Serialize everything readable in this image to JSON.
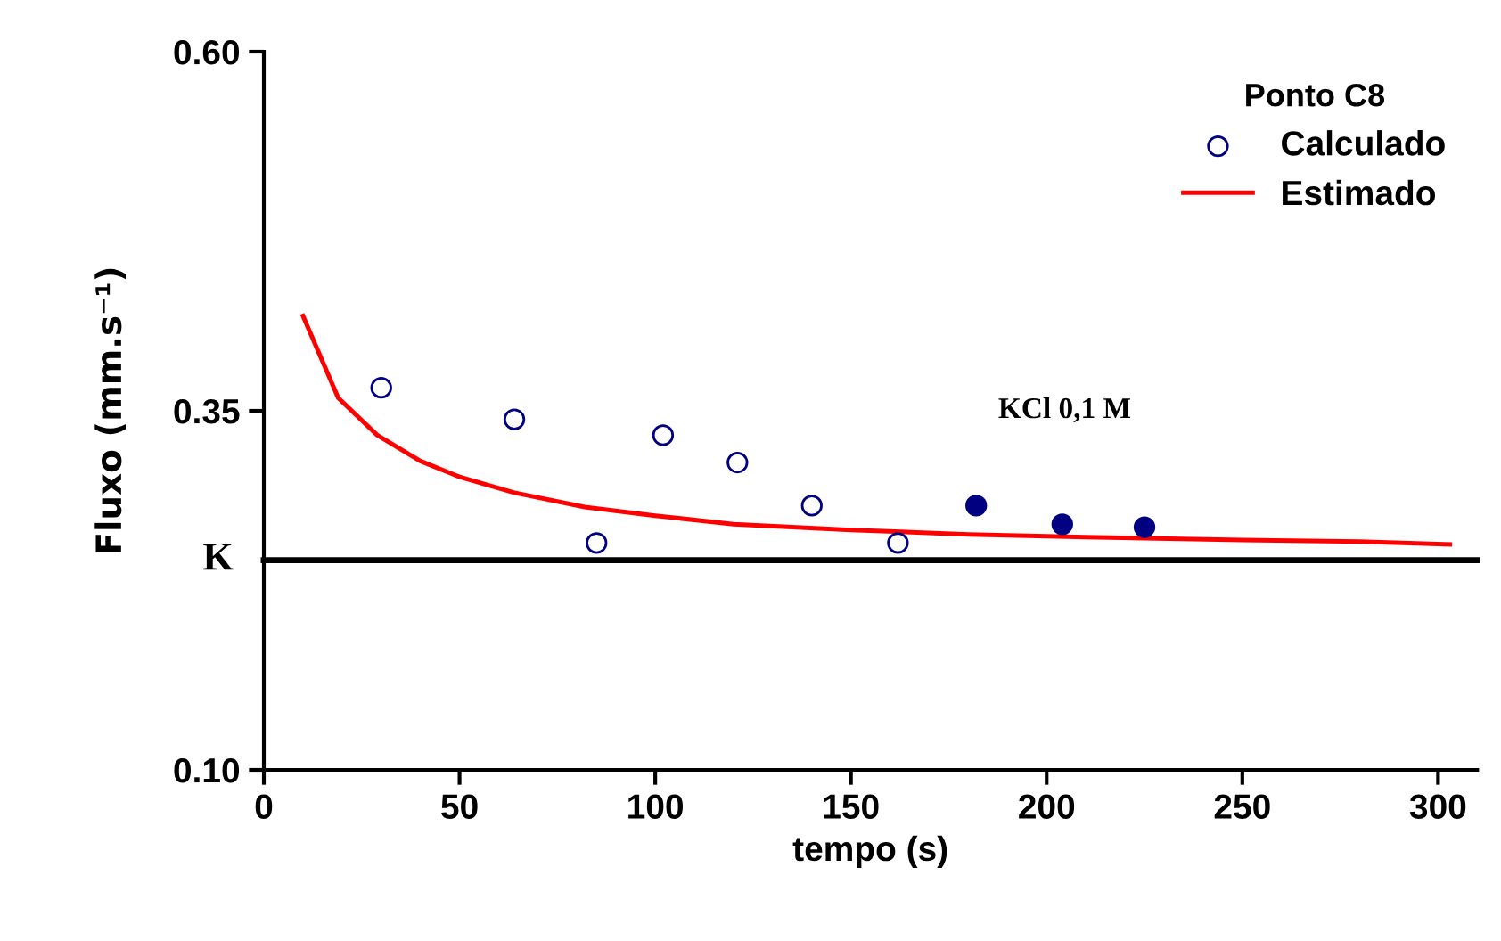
{
  "chart_data": {
    "type": "scatter",
    "xlabel": "tempo (s)",
    "ylabel": "Fluxo (mm.s⁻¹)",
    "legend_title": "Ponto C8",
    "legend": "top right",
    "xlim": [
      0,
      310
    ],
    "ylim": [
      0.1,
      0.6
    ],
    "xticks": [
      0,
      50,
      100,
      150,
      200,
      250,
      300
    ],
    "yticks": [
      {
        "value": 0.1,
        "label": "0.10"
      },
      {
        "value": 0.35,
        "label": "0.35"
      },
      {
        "value": 0.6,
        "label": "0.60"
      }
    ],
    "grid": false,
    "ref_lines": [
      {
        "axis": "y",
        "value": 0.246,
        "label": "K",
        "color": "#000000"
      }
    ],
    "annotations": [
      "KCl 0,1 M"
    ],
    "series": [
      {
        "name": "Calculado",
        "marker": "circle",
        "color": "#000080",
        "x": [
          30,
          64,
          85,
          102,
          121,
          140,
          162
        ],
        "values": [
          0.366,
          0.344,
          0.258,
          0.333,
          0.314,
          0.284,
          0.258
        ]
      },
      {
        "marker": "circle",
        "color": "#000080",
        "x": [
          182,
          204,
          225
        ],
        "values": [
          0.284,
          0.271,
          0.269
        ]
      },
      {
        "name": "Estimado",
        "type": "line",
        "marker": "none",
        "color": "#ff0000",
        "x": [
          10,
          19,
          29,
          40,
          50,
          64,
          82,
          100,
          120,
          150,
          180,
          210,
          250,
          280,
          303
        ],
        "values": [
          0.416,
          0.359,
          0.333,
          0.315,
          0.304,
          0.293,
          0.283,
          0.277,
          0.271,
          0.267,
          0.264,
          0.262,
          0.26,
          0.259,
          0.257
        ]
      }
    ]
  }
}
